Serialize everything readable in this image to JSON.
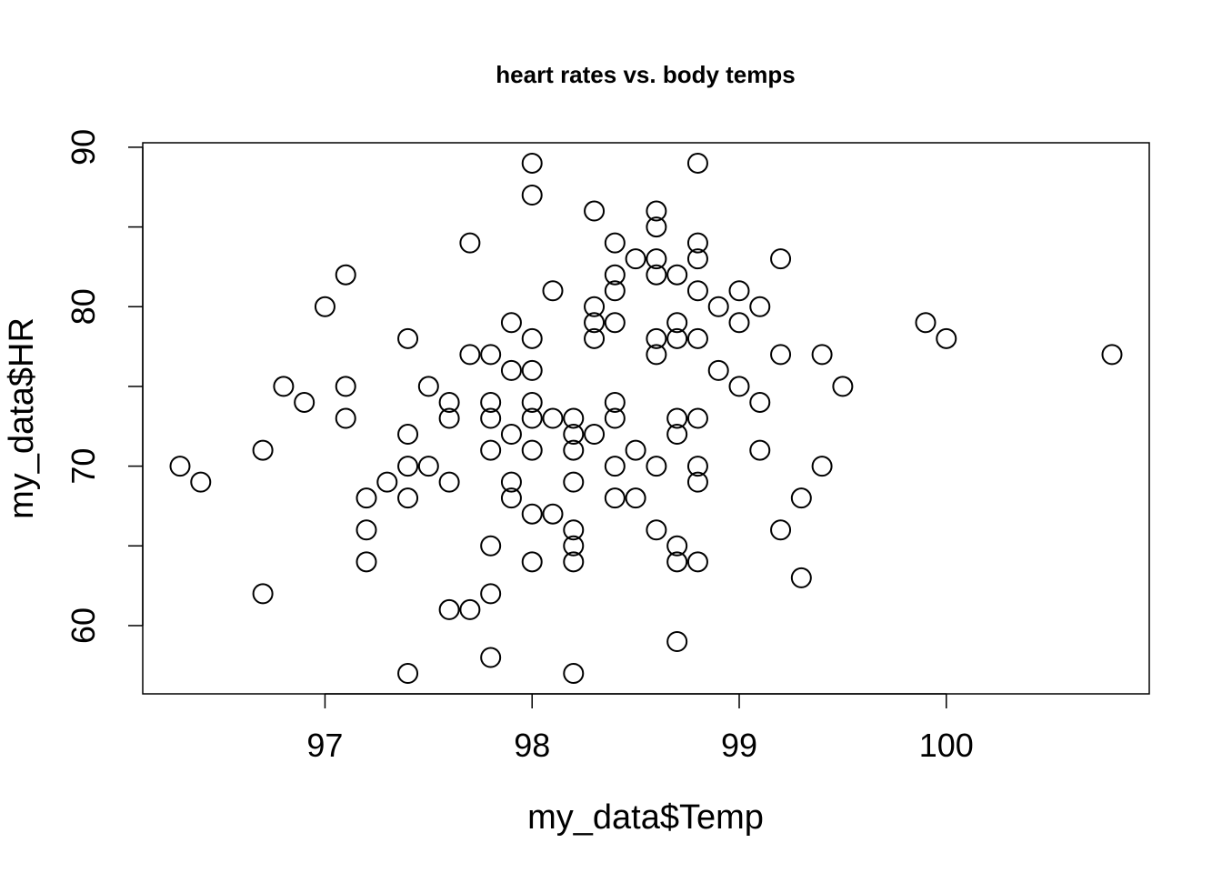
{
  "chart_data": {
    "type": "scatter",
    "title": "heart rates vs. body temps",
    "xlabel": "my_data$Temp",
    "ylabel": "my_data$HR",
    "xlim": [
      96.12,
      100.98
    ],
    "ylim": [
      55.72,
      90.28
    ],
    "xticks": [
      97,
      98,
      99,
      100
    ],
    "xtick_labels": [
      "97",
      "98",
      "99",
      "100"
    ],
    "yticks": [
      60,
      65,
      70,
      75,
      80,
      85,
      90
    ],
    "ytick_labels": [
      "60",
      "",
      "70",
      "",
      "80",
      "",
      "90"
    ],
    "grid": false,
    "marker": "open-circle",
    "color": "#000000",
    "points": [
      [
        96.3,
        70
      ],
      [
        96.4,
        69
      ],
      [
        96.7,
        71
      ],
      [
        96.7,
        62
      ],
      [
        96.8,
        75
      ],
      [
        96.9,
        74
      ],
      [
        97.0,
        80
      ],
      [
        97.1,
        82
      ],
      [
        97.1,
        75
      ],
      [
        97.1,
        73
      ],
      [
        97.2,
        68
      ],
      [
        97.2,
        66
      ],
      [
        97.2,
        64
      ],
      [
        97.3,
        69
      ],
      [
        97.4,
        78
      ],
      [
        97.4,
        72
      ],
      [
        97.4,
        70
      ],
      [
        97.4,
        68
      ],
      [
        97.4,
        57
      ],
      [
        97.5,
        75
      ],
      [
        97.5,
        70
      ],
      [
        97.6,
        74
      ],
      [
        97.6,
        73
      ],
      [
        97.6,
        69
      ],
      [
        97.6,
        61
      ],
      [
        97.7,
        84
      ],
      [
        97.7,
        77
      ],
      [
        97.7,
        61
      ],
      [
        97.8,
        77
      ],
      [
        97.8,
        74
      ],
      [
        97.8,
        73
      ],
      [
        97.8,
        71
      ],
      [
        97.8,
        65
      ],
      [
        97.8,
        62
      ],
      [
        97.8,
        58
      ],
      [
        97.9,
        79
      ],
      [
        97.9,
        76
      ],
      [
        97.9,
        72
      ],
      [
        97.9,
        69
      ],
      [
        97.9,
        68
      ],
      [
        98.0,
        89
      ],
      [
        98.0,
        87
      ],
      [
        98.0,
        78
      ],
      [
        98.0,
        76
      ],
      [
        98.0,
        74
      ],
      [
        98.0,
        73
      ],
      [
        98.0,
        71
      ],
      [
        98.0,
        67
      ],
      [
        98.0,
        64
      ],
      [
        98.1,
        81
      ],
      [
        98.1,
        73
      ],
      [
        98.1,
        67
      ],
      [
        98.2,
        73
      ],
      [
        98.2,
        72
      ],
      [
        98.2,
        71
      ],
      [
        98.2,
        69
      ],
      [
        98.2,
        66
      ],
      [
        98.2,
        65
      ],
      [
        98.2,
        64
      ],
      [
        98.2,
        57
      ],
      [
        98.3,
        86
      ],
      [
        98.3,
        80
      ],
      [
        98.3,
        79
      ],
      [
        98.3,
        78
      ],
      [
        98.3,
        72
      ],
      [
        98.4,
        84
      ],
      [
        98.4,
        82
      ],
      [
        98.4,
        81
      ],
      [
        98.4,
        79
      ],
      [
        98.4,
        74
      ],
      [
        98.4,
        73
      ],
      [
        98.4,
        70
      ],
      [
        98.4,
        68
      ],
      [
        98.5,
        83
      ],
      [
        98.5,
        71
      ],
      [
        98.5,
        68
      ],
      [
        98.6,
        86
      ],
      [
        98.6,
        85
      ],
      [
        98.6,
        83
      ],
      [
        98.6,
        82
      ],
      [
        98.6,
        78
      ],
      [
        98.6,
        77
      ],
      [
        98.6,
        70
      ],
      [
        98.6,
        66
      ],
      [
        98.7,
        82
      ],
      [
        98.7,
        79
      ],
      [
        98.7,
        78
      ],
      [
        98.7,
        73
      ],
      [
        98.7,
        72
      ],
      [
        98.7,
        65
      ],
      [
        98.7,
        64
      ],
      [
        98.7,
        59
      ],
      [
        98.8,
        89
      ],
      [
        98.8,
        84
      ],
      [
        98.8,
        83
      ],
      [
        98.8,
        81
      ],
      [
        98.8,
        78
      ],
      [
        98.8,
        73
      ],
      [
        98.8,
        70
      ],
      [
        98.8,
        69
      ],
      [
        98.8,
        64
      ],
      [
        98.9,
        80
      ],
      [
        98.9,
        76
      ],
      [
        99.0,
        81
      ],
      [
        99.0,
        79
      ],
      [
        99.0,
        75
      ],
      [
        99.1,
        80
      ],
      [
        99.1,
        74
      ],
      [
        99.1,
        71
      ],
      [
        99.2,
        83
      ],
      [
        99.2,
        77
      ],
      [
        99.2,
        66
      ],
      [
        99.3,
        68
      ],
      [
        99.3,
        63
      ],
      [
        99.4,
        77
      ],
      [
        99.4,
        70
      ],
      [
        99.5,
        75
      ],
      [
        99.9,
        79
      ],
      [
        100.0,
        78
      ],
      [
        100.8,
        77
      ]
    ]
  }
}
